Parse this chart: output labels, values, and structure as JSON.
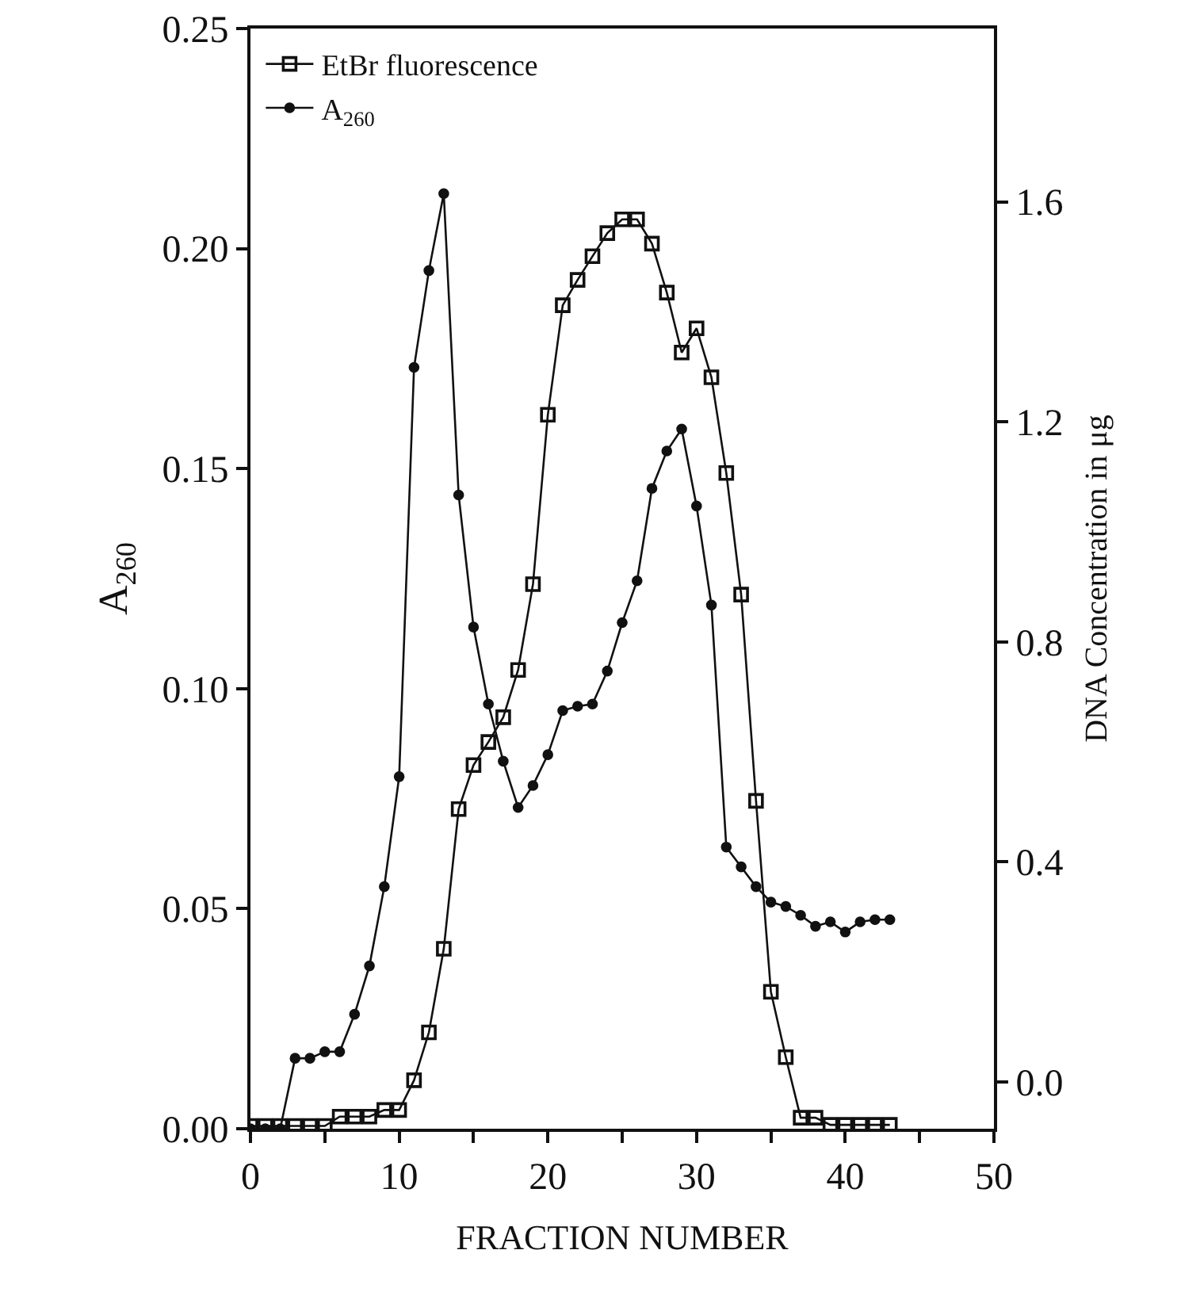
{
  "chart_data": {
    "type": "line",
    "xlabel": "FRACTION NUMBER",
    "ylabel": "A$_{260}$",
    "y2label": "DNA Concentration in μg",
    "xlim": [
      0,
      50
    ],
    "xticks": [
      0,
      {
        "value": 5,
        "label": null
      },
      10,
      {
        "value": 15,
        "label": null
      },
      20,
      {
        "value": 25,
        "label": null
      },
      30,
      {
        "value": 35,
        "label": null
      },
      40,
      {
        "value": 45,
        "label": null
      },
      50
    ],
    "ylim": [
      0,
      0.25
    ],
    "yticks": [
      {
        "value": 0,
        "label": "0.00"
      },
      0.05,
      {
        "value": 0.1,
        "label": "0.10"
      },
      0.15,
      {
        "value": 0.2,
        "label": "0.20"
      },
      0.25
    ],
    "y2lim": [
      -0.085,
      1.915
    ],
    "y2ticks": [
      {
        "value": 0,
        "label": "0.0"
      },
      0.4,
      0.8,
      1.2,
      1.6
    ],
    "grid": false,
    "legend": "top left",
    "line_style": "solid",
    "series": [
      {
        "name": "EtBr fluorescence",
        "color": "#111111",
        "marker": "square",
        "axis": "y2",
        "x": [
          0,
          1,
          2,
          3,
          4,
          5,
          6,
          7,
          8,
          9,
          10,
          11,
          12,
          13,
          14,
          15,
          16,
          17,
          18,
          19,
          20,
          21,
          22,
          23,
          24,
          25,
          26,
          27,
          28,
          29,
          30,
          31,
          32,
          33,
          34,
          35,
          36,
          37,
          38,
          39,
          40,
          41,
          42,
          43
        ],
        "values": [
          -0.08,
          -0.08,
          -0.08,
          -0.08,
          -0.08,
          -0.08,
          -0.063,
          -0.063,
          -0.063,
          -0.051,
          -0.051,
          0.003,
          0.09,
          0.242,
          0.496,
          0.576,
          0.618,
          0.663,
          0.749,
          0.905,
          1.213,
          1.412,
          1.458,
          1.501,
          1.543,
          1.568,
          1.568,
          1.524,
          1.435,
          1.326,
          1.37,
          1.281,
          1.107,
          0.886,
          0.511,
          0.164,
          0.045,
          -0.065,
          -0.065,
          -0.078,
          -0.078,
          -0.078,
          -0.078,
          -0.078
        ]
      },
      {
        "name": "A$_{260}$",
        "color": "#111111",
        "marker": "circle",
        "x": [
          0,
          1,
          2,
          3,
          4,
          5,
          6,
          7,
          8,
          9,
          10,
          11,
          12,
          13,
          14,
          15,
          16,
          17,
          18,
          19,
          20,
          21,
          22,
          23,
          24,
          25,
          26,
          27,
          28,
          29,
          30,
          31,
          32,
          33,
          34,
          35,
          36,
          37,
          38,
          39,
          40,
          41,
          42,
          43
        ],
        "values": [
          0,
          0,
          0,
          0.016,
          0.016,
          0.0175,
          0.0175,
          0.026,
          0.037,
          0.055,
          0.08,
          0.173,
          0.195,
          0.2125,
          0.144,
          0.114,
          0.0965,
          0.0835,
          0.073,
          0.078,
          0.085,
          0.095,
          0.096,
          0.0965,
          0.104,
          0.115,
          0.1245,
          0.1455,
          0.154,
          0.159,
          0.1415,
          0.119,
          0.064,
          0.0595,
          0.055,
          0.0515,
          0.0505,
          0.0485,
          0.046,
          0.047,
          0.0447,
          0.047,
          0.0475,
          0.0475
        ]
      }
    ]
  }
}
